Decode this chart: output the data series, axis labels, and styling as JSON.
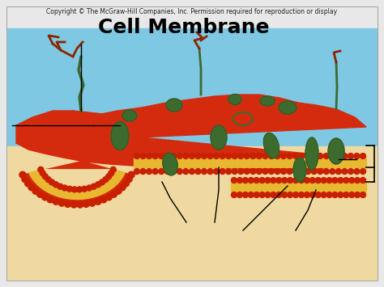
{
  "title": "Cell Membrane",
  "copyright": "Copyright © The McGraw-Hill Companies, Inc. Permission required for reproduction or display",
  "bg_outer": "#e8e8e8",
  "bg_top": "#7ec8e3",
  "bg_bottom": "#f0d9a0",
  "membrane_red": "#d42b0f",
  "membrane_yellow": "#e8b830",
  "phospholipid_head": "#c82000",
  "phospholipid_tail_color": "#e8b830",
  "protein_green": "#3d6b2e",
  "protein_dark": "#2d5020",
  "carb_brown": "#8b2500",
  "line_color": "#000000",
  "title_fontsize": 18,
  "copyright_fontsize": 5.5,
  "figw": 4.74,
  "figh": 3.55,
  "dpi": 100
}
